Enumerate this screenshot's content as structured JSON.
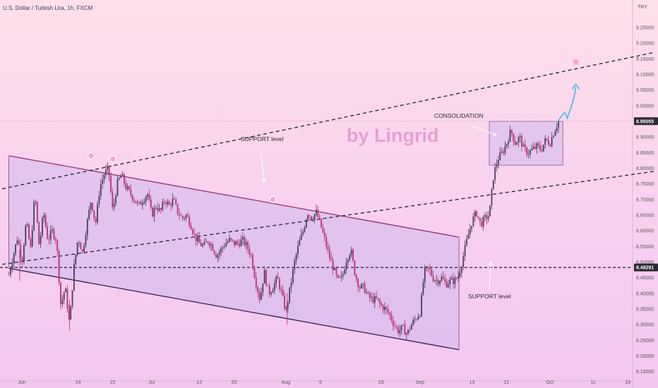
{
  "header": {
    "symbol_line": "U.S. Dollar / Turkish Lira, 1h, FXCM",
    "currency": "TRY"
  },
  "watermark": "by Lingrid",
  "annotations": {
    "consolidation": "CONSOLIDATION",
    "support_upper": "SUPPORT level",
    "support_lower": "SUPPORT level"
  },
  "price_tags": {
    "current": "8.95055",
    "support": "8.48291"
  },
  "colors": {
    "candle_up": "#4a3d5c",
    "candle_down": "#b8306e",
    "channel_edge": "#9c3a73",
    "channel_fill": "#c8b4ee",
    "projection": "#4fb7e0",
    "tag_dark": "#2a2a35",
    "marker": "#f2a7cf"
  },
  "chart_data": {
    "type": "candlestick",
    "title": "U.S. Dollar / Turkish Lira, 1h, FXCM",
    "ylim": [
      8.12,
      9.32
    ],
    "y_ticks": [
      "9.25000",
      "9.20000",
      "9.15000",
      "9.10000",
      "9.05000",
      "9.00000",
      "8.95000",
      "8.90000",
      "8.85000",
      "8.80000",
      "8.75000",
      "8.70000",
      "8.65000",
      "8.60000",
      "8.55000",
      "8.50000",
      "8.45000",
      "8.40000",
      "8.35000",
      "8.30000",
      "8.25000",
      "8.20000",
      "8.15000"
    ],
    "x_ticks": [
      {
        "label": "Jun",
        "day": 0
      },
      {
        "label": "14",
        "day": 13
      },
      {
        "label": "22",
        "day": 21
      },
      {
        "label": "Jul",
        "day": 30
      },
      {
        "label": "12",
        "day": 41
      },
      {
        "label": "20",
        "day": 49
      },
      {
        "label": "Aug",
        "day": 61
      },
      {
        "label": "9",
        "day": 69
      },
      {
        "label": "23",
        "day": 83
      },
      {
        "label": "Sep",
        "day": 92
      },
      {
        "label": "13",
        "day": 104
      },
      {
        "label": "21",
        "day": 112
      },
      {
        "label": "Oct",
        "day": 122
      },
      {
        "label": "11",
        "day": 132
      },
      {
        "label": "19",
        "day": 140
      }
    ],
    "price_path": [
      [
        -3,
        8.46
      ],
      [
        -1,
        8.58
      ],
      [
        0,
        8.5
      ],
      [
        1,
        8.63
      ],
      [
        2,
        8.54
      ],
      [
        3,
        8.72
      ],
      [
        4,
        8.55
      ],
      [
        5,
        8.66
      ],
      [
        6,
        8.57
      ],
      [
        7,
        8.6
      ],
      [
        8,
        8.57
      ],
      [
        9,
        8.36
      ],
      [
        10,
        8.42
      ],
      [
        11,
        8.3
      ],
      [
        12,
        8.48
      ],
      [
        13,
        8.58
      ],
      [
        14,
        8.53
      ],
      [
        15,
        8.62
      ],
      [
        16,
        8.7
      ],
      [
        17,
        8.62
      ],
      [
        18,
        8.74
      ],
      [
        19,
        8.78
      ],
      [
        20,
        8.8
      ],
      [
        21,
        8.66
      ],
      [
        22,
        8.75
      ],
      [
        23,
        8.78
      ],
      [
        24,
        8.74
      ],
      [
        25,
        8.72
      ],
      [
        26,
        8.7
      ],
      [
        27,
        8.68
      ],
      [
        28,
        8.7
      ],
      [
        29,
        8.72
      ],
      [
        30,
        8.65
      ],
      [
        31,
        8.68
      ],
      [
        32,
        8.66
      ],
      [
        33,
        8.7
      ],
      [
        34,
        8.68
      ],
      [
        35,
        8.7
      ],
      [
        36,
        8.66
      ],
      [
        37,
        8.64
      ],
      [
        38,
        8.65
      ],
      [
        39,
        8.62
      ],
      [
        40,
        8.58
      ],
      [
        41,
        8.56
      ],
      [
        42,
        8.55
      ],
      [
        43,
        8.57
      ],
      [
        44,
        8.55
      ],
      [
        45,
        8.52
      ],
      [
        46,
        8.54
      ],
      [
        47,
        8.56
      ],
      [
        48,
        8.57
      ],
      [
        49,
        8.56
      ],
      [
        50,
        8.56
      ],
      [
        51,
        8.57
      ],
      [
        52,
        8.55
      ],
      [
        53,
        8.52
      ],
      [
        54,
        8.44
      ],
      [
        55,
        8.38
      ],
      [
        56,
        8.47
      ],
      [
        57,
        8.4
      ],
      [
        58,
        8.42
      ],
      [
        59,
        8.45
      ],
      [
        60,
        8.4
      ],
      [
        61,
        8.34
      ],
      [
        62,
        8.42
      ],
      [
        63,
        8.5
      ],
      [
        64,
        8.56
      ],
      [
        65,
        8.6
      ],
      [
        66,
        8.66
      ],
      [
        67,
        8.64
      ],
      [
        68,
        8.66
      ],
      [
        69,
        8.62
      ],
      [
        70,
        8.57
      ],
      [
        71,
        8.52
      ],
      [
        72,
        8.48
      ],
      [
        73,
        8.44
      ],
      [
        74,
        8.45
      ],
      [
        75,
        8.51
      ],
      [
        76,
        8.54
      ],
      [
        77,
        8.46
      ],
      [
        78,
        8.42
      ],
      [
        79,
        8.42
      ],
      [
        80,
        8.39
      ],
      [
        81,
        8.38
      ],
      [
        82,
        8.38
      ],
      [
        83,
        8.36
      ],
      [
        84,
        8.35
      ],
      [
        85,
        8.33
      ],
      [
        86,
        8.3
      ],
      [
        87,
        8.28
      ],
      [
        88,
        8.29
      ],
      [
        89,
        8.27
      ],
      [
        90,
        8.3
      ],
      [
        91,
        8.32
      ],
      [
        92,
        8.34
      ],
      [
        93,
        8.47
      ],
      [
        94,
        8.48
      ],
      [
        95,
        8.45
      ],
      [
        96,
        8.44
      ],
      [
        97,
        8.45
      ],
      [
        98,
        8.43
      ],
      [
        99,
        8.44
      ],
      [
        100,
        8.44
      ],
      [
        101,
        8.46
      ],
      [
        102,
        8.52
      ],
      [
        103,
        8.58
      ],
      [
        104,
        8.63
      ],
      [
        105,
        8.66
      ],
      [
        106,
        8.62
      ],
      [
        107,
        8.64
      ],
      [
        108,
        8.65
      ],
      [
        109,
        8.78
      ],
      [
        110,
        8.83
      ],
      [
        111,
        8.85
      ],
      [
        112,
        8.88
      ],
      [
        113,
        8.92
      ],
      [
        114,
        8.88
      ],
      [
        115,
        8.9
      ],
      [
        116,
        8.86
      ],
      [
        117,
        8.85
      ],
      [
        118,
        8.86
      ],
      [
        119,
        8.87
      ],
      [
        120,
        8.86
      ],
      [
        121,
        8.89
      ],
      [
        122,
        8.88
      ],
      [
        123,
        8.92
      ],
      [
        124,
        8.95
      ]
    ],
    "projection": [
      [
        124,
        8.95
      ],
      [
        125,
        8.97
      ],
      [
        126,
        8.96
      ],
      [
        127,
        9.0
      ],
      [
        128,
        9.06
      ]
    ],
    "target_star": {
      "day": 128,
      "price": 9.14
    },
    "channel": {
      "upper": [
        [
          -3,
          8.84
        ],
        [
          101,
          8.58
        ]
      ],
      "lower": [
        [
          -3,
          8.48
        ],
        [
          101,
          8.22
        ]
      ]
    },
    "consolidation_box": {
      "day_start": 108,
      "day_end": 125,
      "price_top": 8.95,
      "price_bottom": 8.81
    },
    "trendlines": [
      {
        "name": "upper-dashed",
        "from": [
          -6,
          8.73
        ],
        "to": [
          146,
          9.17
        ]
      },
      {
        "name": "middle-dashed",
        "from": [
          -6,
          8.49
        ],
        "to": [
          146,
          8.79
        ]
      }
    ],
    "hlines": [
      {
        "name": "support",
        "price": 8.48291
      },
      {
        "name": "current",
        "price": 8.95055
      }
    ],
    "marker_points": [
      [
        16,
        8.84
      ],
      [
        21,
        8.83
      ],
      [
        58,
        8.7
      ]
    ],
    "candle_count": 330,
    "seed": 7
  }
}
